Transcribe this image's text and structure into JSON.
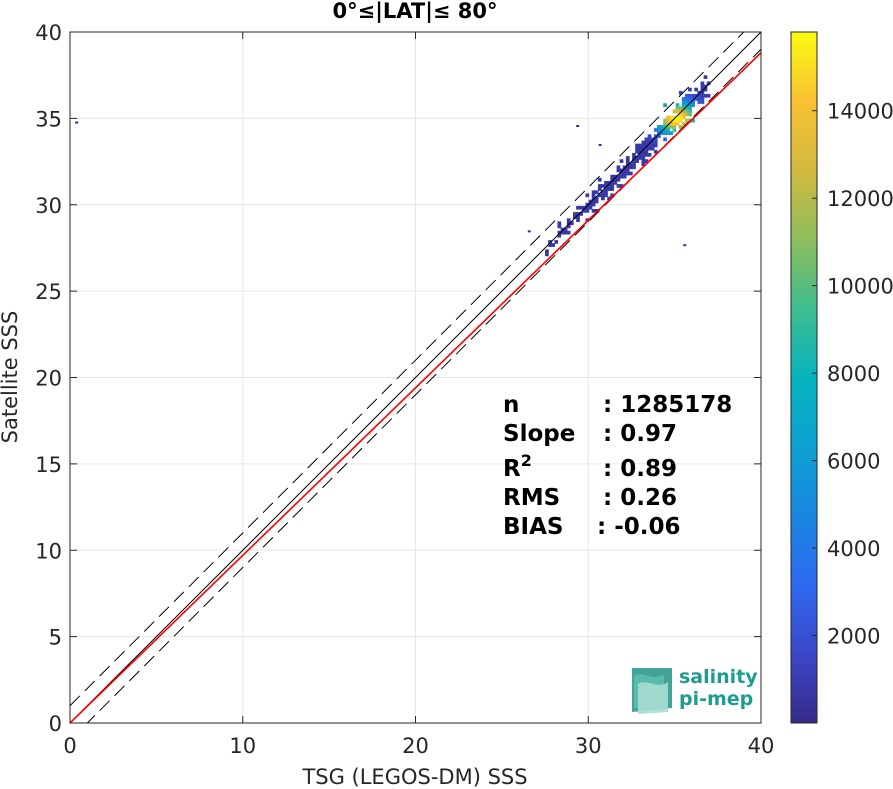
{
  "chart_data": {
    "type": "heatmap",
    "title": "0°≤|LAT|≤ 80°",
    "xlabel": "TSG (LEGOS-DM) SSS",
    "ylabel": "Satellite SSS",
    "xlim": [
      0,
      40
    ],
    "ylim": [
      0,
      40
    ],
    "x_ticks": [
      "0",
      "10",
      "20",
      "30",
      "40"
    ],
    "y_ticks": [
      "0",
      "5",
      "10",
      "15",
      "20",
      "25",
      "30",
      "35",
      "40"
    ],
    "grid": true,
    "colorbar": {
      "range": [
        0,
        15800
      ],
      "ticks": [
        "2000",
        "4000",
        "6000",
        "8000",
        "10000",
        "12000",
        "14000"
      ],
      "colormap": "parula"
    },
    "reference_lines": {
      "one_to_one_color": "#000000",
      "dashed_offsets": [
        -1,
        1
      ],
      "regression_color": "#ff0000",
      "regression_slope": 0.97,
      "regression_intercept": 0.0
    },
    "density_core": {
      "center": [
        35.0,
        34.9
      ],
      "along_extent": [
        27.5,
        36.9
      ],
      "peak": 15500
    },
    "stats": [
      {
        "label": "n",
        "value": ": 1285178"
      },
      {
        "label": "Slope",
        "value": ": 0.97"
      },
      {
        "label": "R",
        "sup": "2",
        "value": ": 0.89"
      },
      {
        "label": "RMS",
        "value": ": 0.26"
      },
      {
        "label": "BIAS",
        "value": ": -0.06"
      }
    ]
  },
  "logo": {
    "line1": "salinity",
    "line2": "pi-mep",
    "color": "#1d9d8f"
  }
}
